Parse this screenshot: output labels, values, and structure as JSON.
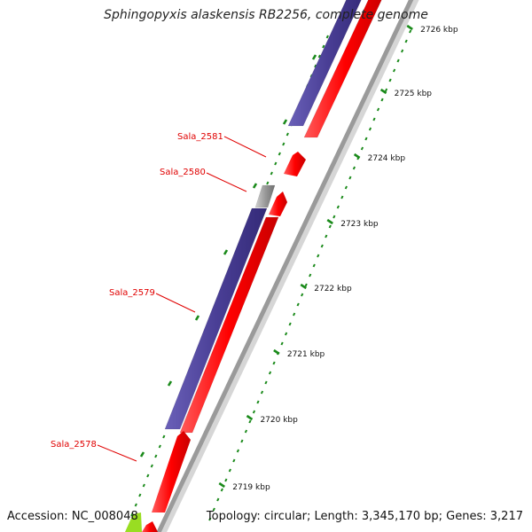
{
  "title": "Sphingopyxis alaskensis RB2256, complete genome",
  "footer": {
    "accession": "Accession: NC_008048",
    "summary": "Topology: circular; Length: 3,345,170 bp; Genes: 3,217"
  },
  "scale_unit": "kbp",
  "ticks": [
    2719,
    2720,
    2721,
    2722,
    2723,
    2724,
    2725,
    2726
  ],
  "tick_labels": [
    "2719 kbp",
    "2720 kbp",
    "2721 kbp",
    "2722 kbp",
    "2723 kbp",
    "2724 kbp",
    "2725 kbp",
    "2726 kbp"
  ],
  "genes": [
    {
      "name": "Sala_2578",
      "strand": "forward"
    },
    {
      "name": "Sala_2579",
      "strand": "reverse"
    },
    {
      "name": "Sala_2580",
      "strand": "reverse"
    },
    {
      "name": "Sala_2581",
      "strand": "forward"
    }
  ],
  "colors": {
    "forward_gene": "#ff0000",
    "reverse_gene": "#4a3f96",
    "pseudo_gene": "#6e6e6e",
    "other_feature": "#99dd22",
    "backbone": "#9a9a9a",
    "tick": "#1a8a1a",
    "gene_label": "#e00000",
    "title": "#222222"
  }
}
